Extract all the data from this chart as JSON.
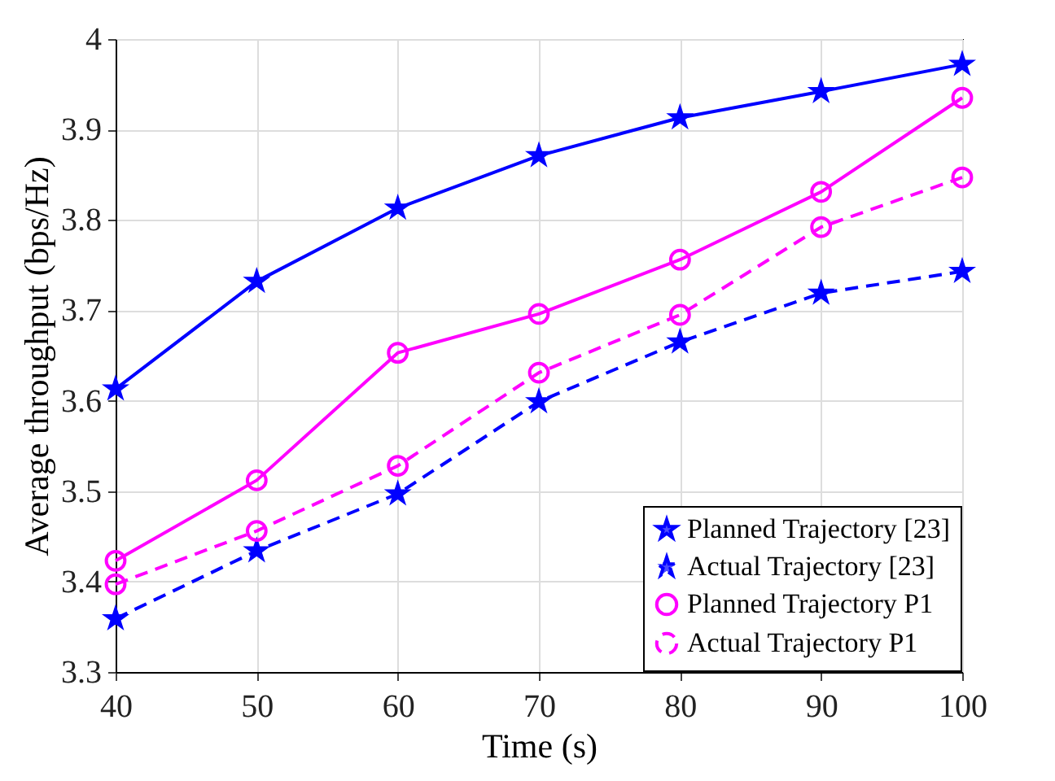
{
  "chart_data": {
    "type": "line",
    "xlabel": "Time (s)",
    "ylabel": "Average throughput (bps/Hz)",
    "x": [
      40,
      50,
      60,
      70,
      80,
      90,
      100
    ],
    "series": [
      {
        "name": "Planned Trajectory [23]",
        "color": "#0000ff",
        "marker": "star",
        "line_style": "solid",
        "values": [
          3.613,
          3.732,
          3.813,
          3.871,
          3.913,
          3.942,
          3.972
        ]
      },
      {
        "name": "Actual Trajectory [23]",
        "color": "#0000ff",
        "marker": "star",
        "line_style": "dashed",
        "values": [
          3.359,
          3.434,
          3.497,
          3.599,
          3.665,
          3.719,
          3.743
        ]
      },
      {
        "name": "Planned Trajectory P1",
        "color": "#ff00ff",
        "marker": "circle",
        "line_style": "solid",
        "values": [
          3.423,
          3.512,
          3.653,
          3.696,
          3.756,
          3.831,
          3.935
        ]
      },
      {
        "name": "Actual Trajectory P1",
        "color": "#ff00ff",
        "marker": "circle",
        "line_style": "dashed",
        "values": [
          3.397,
          3.456,
          3.528,
          3.631,
          3.695,
          3.792,
          3.847
        ]
      }
    ],
    "xlim": [
      40,
      100
    ],
    "xticks": [
      40,
      50,
      60,
      70,
      80,
      90,
      100
    ],
    "ylim": [
      3.3,
      4
    ],
    "yticks": [
      3.3,
      3.4,
      3.5,
      3.6,
      3.7,
      3.8,
      3.9,
      4
    ],
    "grid": true,
    "legend": "bottom right"
  }
}
